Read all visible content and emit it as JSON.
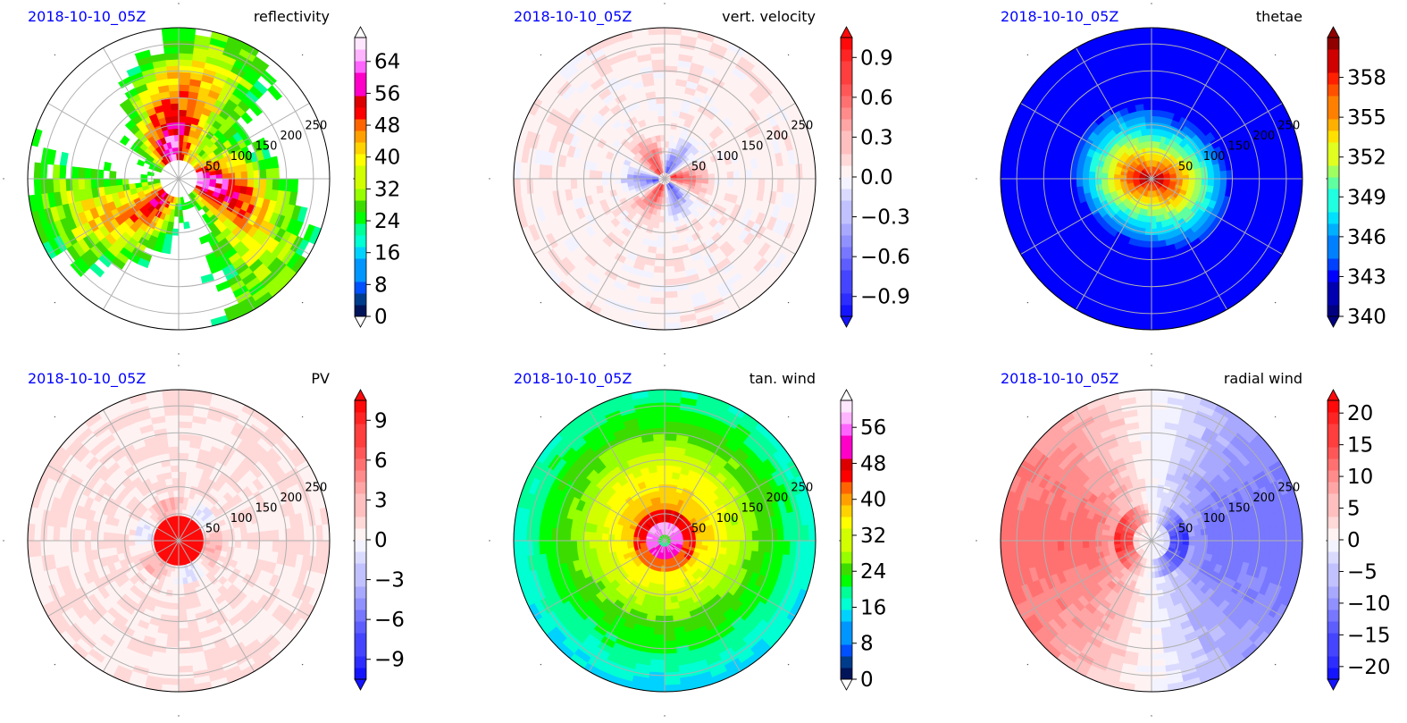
{
  "chart_data": [
    {
      "type": "polar-contour",
      "date": "2018-10-10_05Z",
      "title": "reflectivity",
      "colormap": "reflectivity",
      "radial_ticks": [
        50,
        100,
        150,
        200,
        250
      ],
      "colorbar": {
        "min": 0,
        "max": 70,
        "ticks": [
          0,
          8,
          16,
          24,
          32,
          40,
          48,
          56,
          64
        ],
        "tick_labels": [
          "0",
          "8",
          "16",
          "24",
          "32",
          "40",
          "48",
          "56",
          "64"
        ],
        "extend": "both"
      }
    },
    {
      "type": "polar-contour",
      "date": "2018-10-10_05Z",
      "title": "vert. velocity",
      "colormap": "bwr",
      "radial_ticks": [
        50,
        100,
        150,
        200,
        250
      ],
      "colorbar": {
        "min": -1.05,
        "max": 1.05,
        "ticks": [
          -0.9,
          -0.6,
          -0.3,
          0.0,
          0.3,
          0.6,
          0.9
        ],
        "tick_labels": [
          "−0.9",
          "−0.6",
          "−0.3",
          "0.0",
          "0.3",
          "0.6",
          "0.9"
        ],
        "extend": "both"
      }
    },
    {
      "type": "polar-contour",
      "date": "2018-10-10_05Z",
      "title": "thetae",
      "colormap": "jet",
      "radial_ticks": [
        50,
        100,
        150,
        200,
        250
      ],
      "colorbar": {
        "min": 340,
        "max": 361,
        "ticks": [
          340,
          343,
          346,
          349,
          352,
          355,
          358
        ],
        "tick_labels": [
          "340",
          "343",
          "346",
          "349",
          "352",
          "355",
          "358"
        ],
        "extend": "both"
      }
    },
    {
      "type": "polar-contour",
      "date": "2018-10-10_05Z",
      "title": "PV",
      "colormap": "bwr",
      "radial_ticks": [
        50,
        100,
        150,
        200,
        250
      ],
      "colorbar": {
        "min": -10.5,
        "max": 10.5,
        "ticks": [
          -9,
          -6,
          -3,
          0,
          3,
          6,
          9
        ],
        "tick_labels": [
          "−9",
          "−6",
          "−3",
          "0",
          "3",
          "6",
          "9"
        ],
        "extend": "both"
      }
    },
    {
      "type": "polar-contour",
      "date": "2018-10-10_05Z",
      "title": "tan. wind",
      "colormap": "reflectivity",
      "radial_ticks": [
        50,
        100,
        150,
        200,
        250
      ],
      "colorbar": {
        "min": 0,
        "max": 62,
        "ticks": [
          0,
          8,
          16,
          24,
          32,
          40,
          48,
          56
        ],
        "tick_labels": [
          "0",
          "8",
          "16",
          "24",
          "32",
          "40",
          "48",
          "56"
        ],
        "extend": "both"
      }
    },
    {
      "type": "polar-contour",
      "date": "2018-10-10_05Z",
      "title": "radial wind",
      "colormap": "bwr",
      "radial_ticks": [
        50,
        100,
        150,
        200,
        250
      ],
      "colorbar": {
        "min": -22,
        "max": 22,
        "ticks": [
          -20,
          -15,
          -10,
          -5,
          0,
          5,
          10,
          15,
          20
        ],
        "tick_labels": [
          "−20",
          "−15",
          "−10",
          "−5",
          "0",
          "5",
          "10",
          "15",
          "20"
        ],
        "extend": "both"
      }
    }
  ]
}
